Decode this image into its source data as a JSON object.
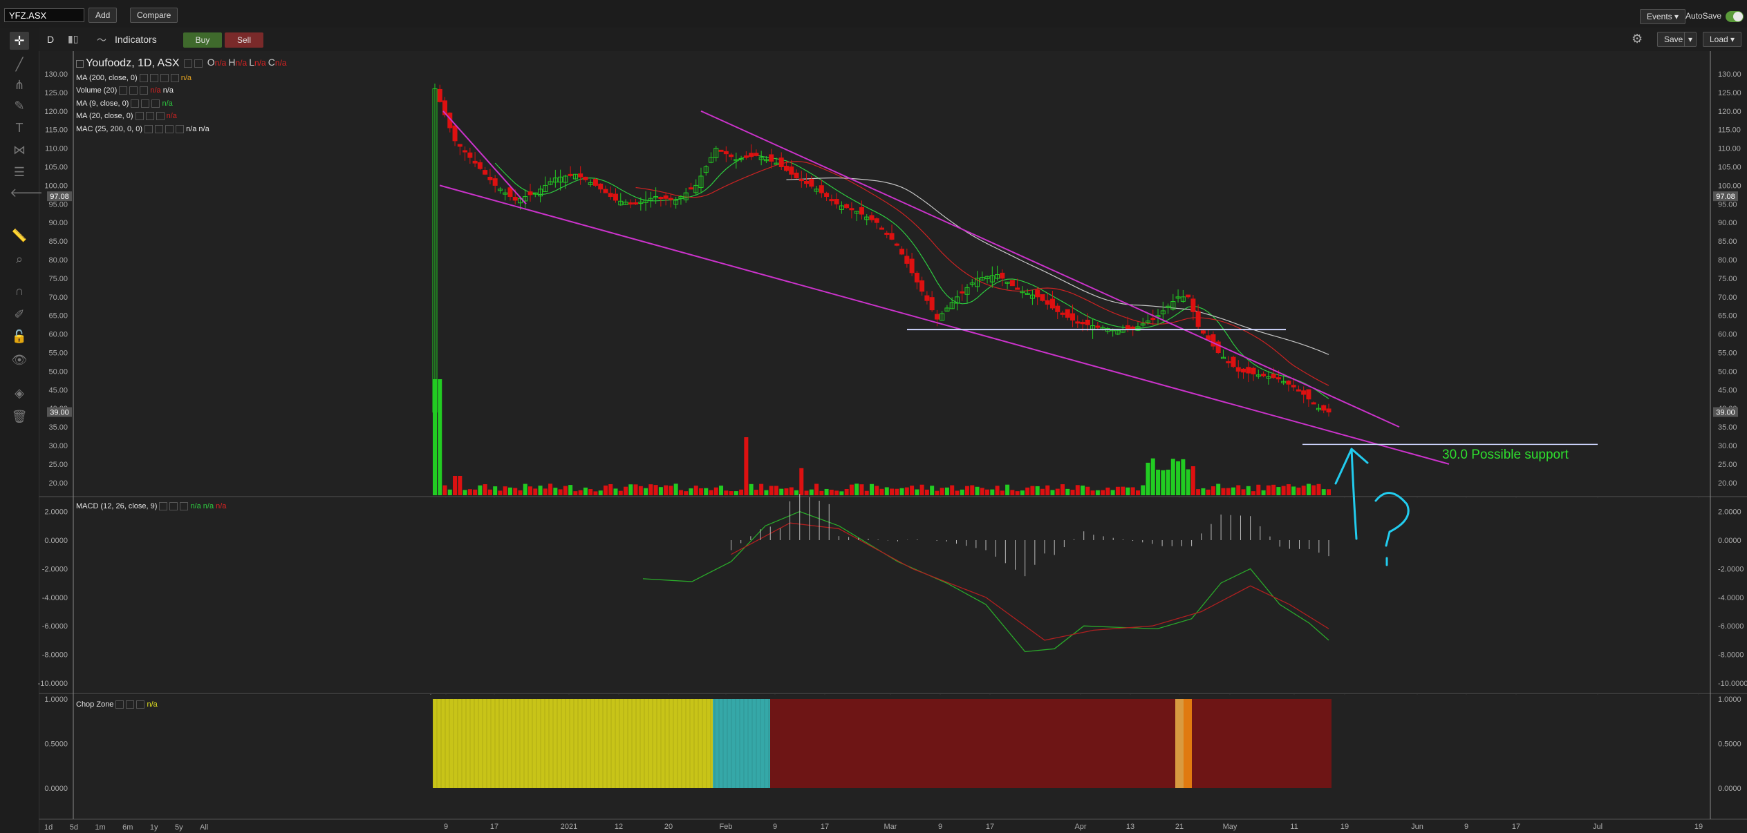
{
  "header": {
    "symbol_value": "YFZ.ASX",
    "add_label": "Add",
    "compare_label": "Compare",
    "events_label": "Events ▾",
    "autosave_label": "AutoSave"
  },
  "toolbar": {
    "interval": "D",
    "indicators_label": "Indicators",
    "buy_label": "Buy",
    "sell_label": "Sell",
    "save_label": "Save",
    "load_label": "Load ▾"
  },
  "main_chart": {
    "title": "Youfoodz, 1D, ASX",
    "ohlc": {
      "o": "O",
      "h": "H",
      "l": "L",
      "c": "C",
      "o_val": "n/a",
      "h_val": "n/a",
      "l_val": "n/a",
      "c_val": "n/a"
    },
    "legends": [
      {
        "label": "MA (200, close, 0)",
        "value": "n/a",
        "color": "#e0a020"
      },
      {
        "label": "Volume (20)",
        "value": "n/a",
        "color": "#d0d0d0"
      },
      {
        "label": "MA (9, close, 0)",
        "value": "n/a",
        "color": "#2ecc40"
      },
      {
        "label": "MA (20, close, 0)",
        "value": "n/a",
        "color": "#d02020"
      },
      {
        "label": "MAC (25, 200, 0, 0)",
        "value": "n/a",
        "color": "#ffffff"
      }
    ],
    "y_ticks": [
      "130.00",
      "125.00",
      "120.00",
      "115.00",
      "110.00",
      "105.00",
      "100.00",
      "95.00",
      "90.00",
      "85.00",
      "80.00",
      "75.00",
      "70.00",
      "65.00",
      "60.00",
      "55.00",
      "50.00",
      "45.00",
      "40.00",
      "35.00",
      "30.00",
      "25.00",
      "20.00"
    ],
    "price_marker_1": "97.08",
    "price_marker_2": "39.00",
    "annotation": "30.0 Possible support"
  },
  "macd_panel": {
    "legend": "MACD (12, 26, close, 9)",
    "values": [
      "n/a",
      "n/a",
      "n/a"
    ],
    "y_ticks": [
      "2.0000",
      "0.0000",
      "-2.0000",
      "-4.0000",
      "-6.0000",
      "-8.0000",
      "-10.0000"
    ]
  },
  "chop_panel": {
    "legend": "Chop Zone",
    "value": "n/a",
    "y_ticks": [
      "1.0000",
      "0.5000",
      "0.0000"
    ]
  },
  "x_axis": [
    "9",
    "17",
    "2021",
    "12",
    "20",
    "Feb",
    "9",
    "17",
    "Mar",
    "9",
    "17",
    "Apr",
    "13",
    "21",
    "May",
    "11",
    "19",
    "Jun",
    "9",
    "17",
    "Jul",
    "19"
  ],
  "range_buttons": [
    "1d",
    "5d",
    "1m",
    "6m",
    "1y",
    "5y",
    "All"
  ],
  "colors": {
    "up": "#22cc22",
    "down": "#dd1111",
    "trendline": "#cc33cc",
    "annotation": "#2ee02e",
    "arrow": "#22ccee"
  }
}
